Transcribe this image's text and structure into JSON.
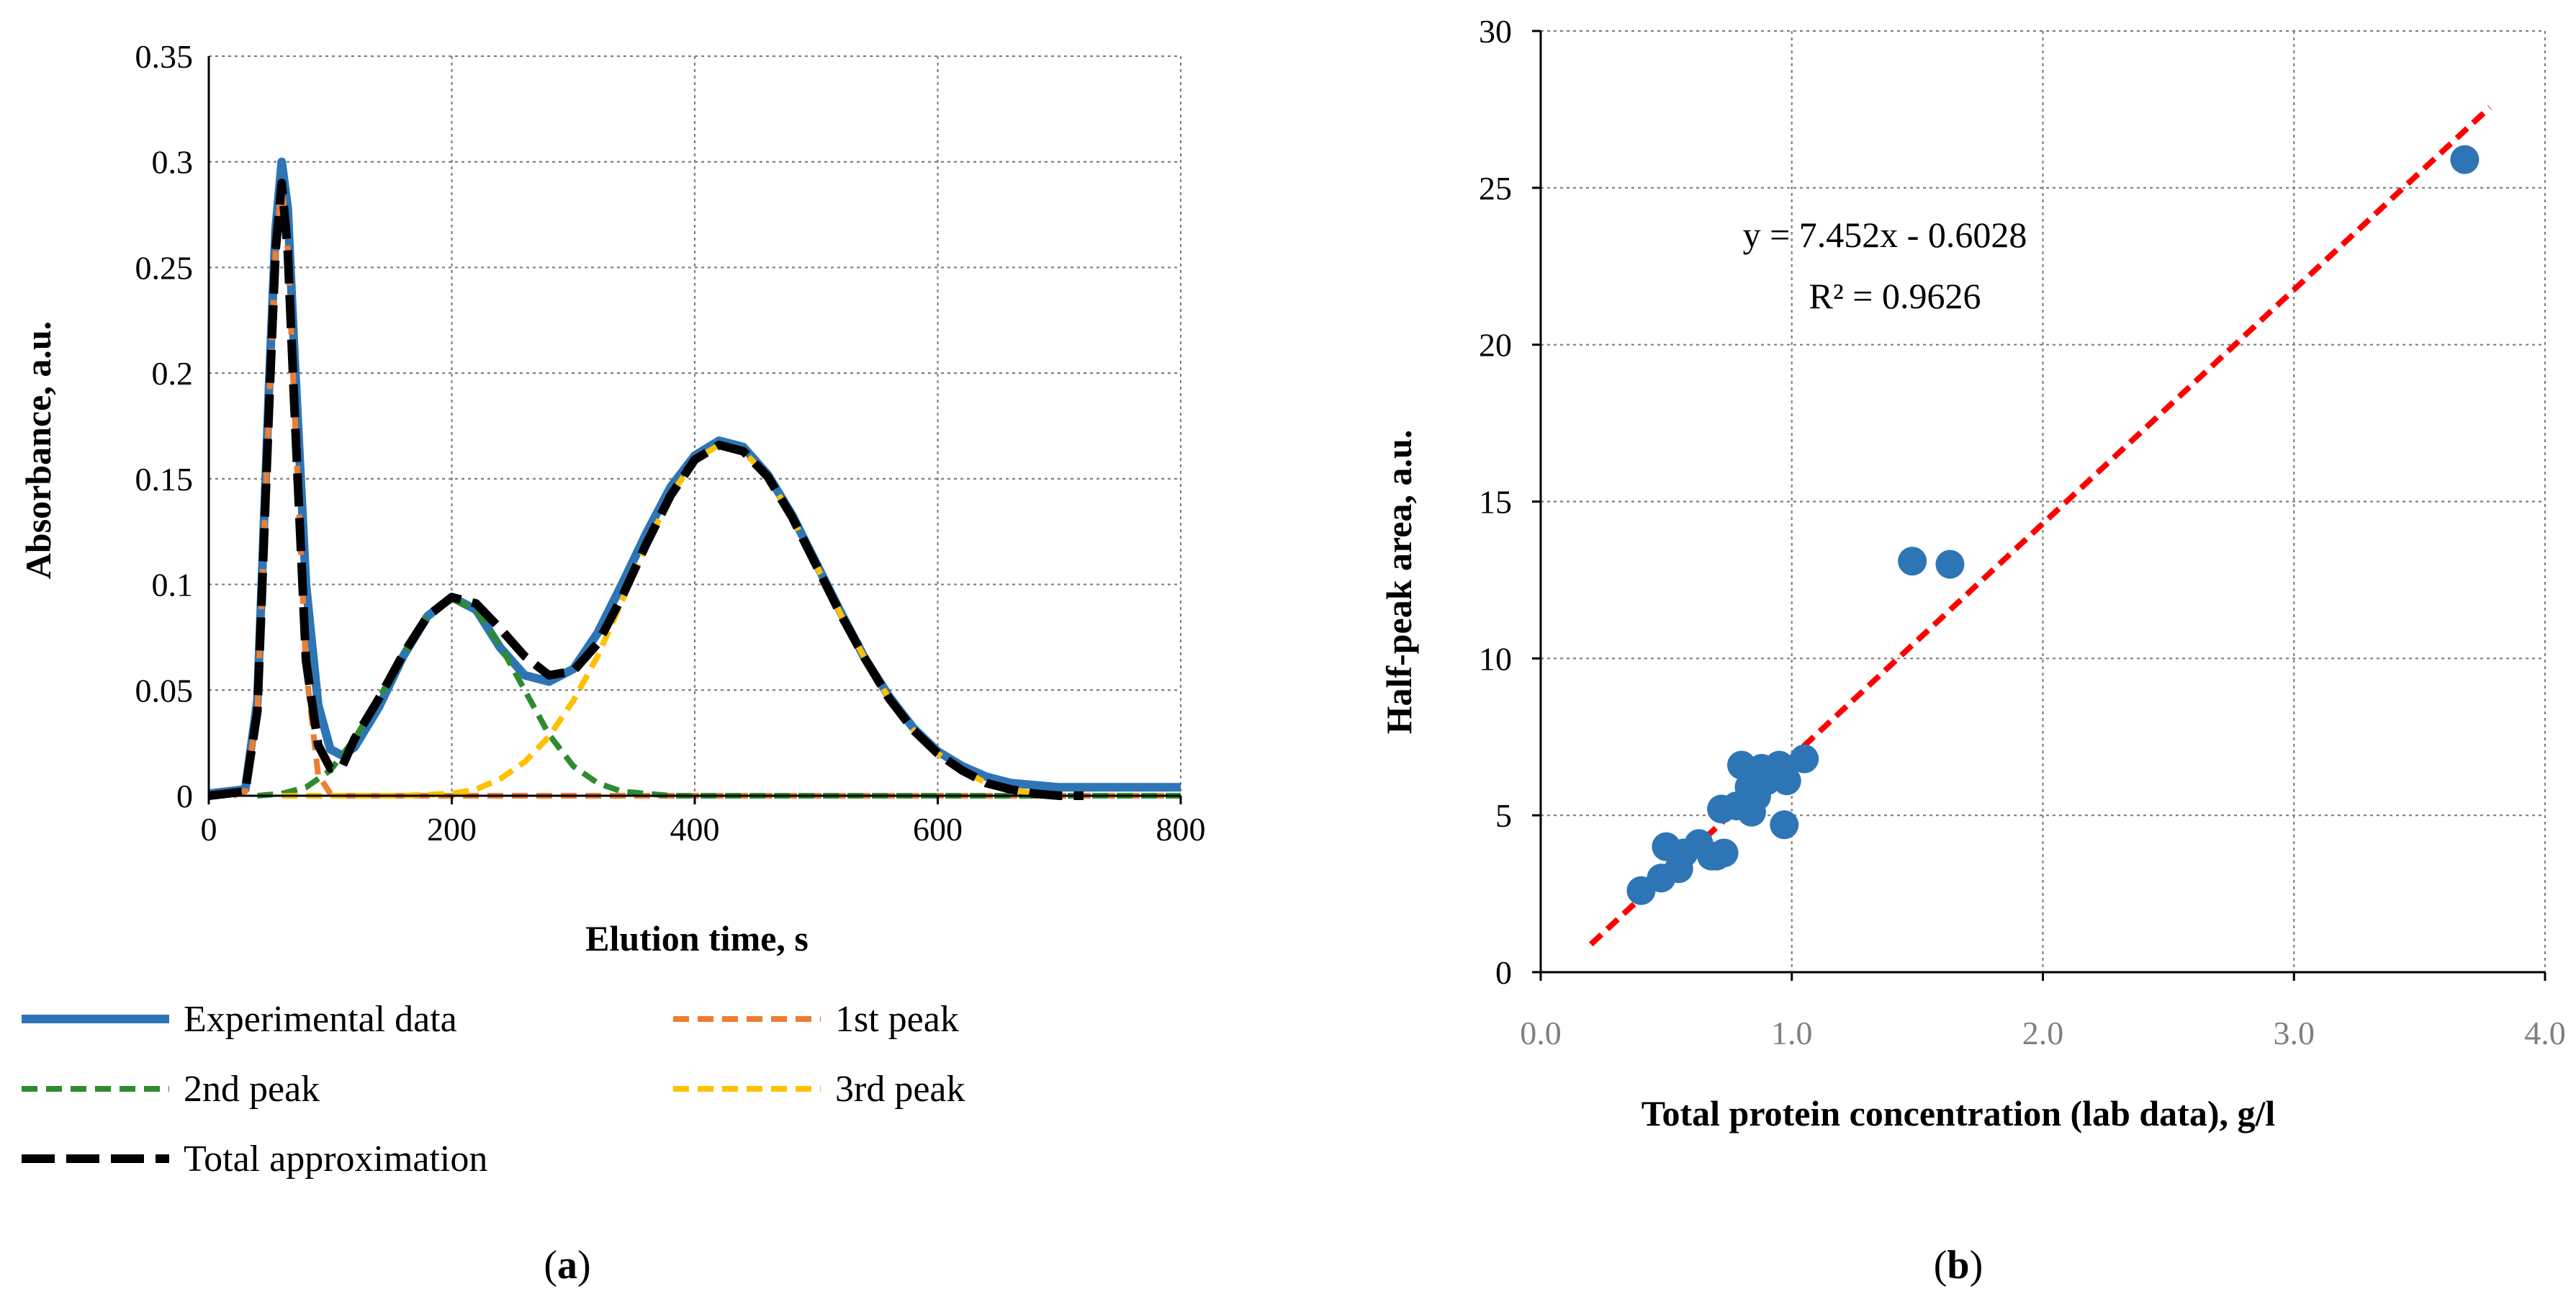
{
  "chart_data": [
    {
      "type": "line",
      "panel": "a",
      "caption": "a",
      "xlabel": "Elution time, s",
      "ylabel": "Absorbance, a.u.",
      "xlim": [
        0,
        800
      ],
      "ylim": [
        0,
        0.35
      ],
      "x_ticks": [
        "0",
        "200",
        "400",
        "600",
        "800"
      ],
      "y_ticks": [
        "0",
        "0.05",
        "0.1",
        "0.15",
        "0.2",
        "0.25",
        "0.3",
        "0.35"
      ],
      "grid": true,
      "legend_position": "bottom",
      "series": [
        {
          "name": "Experimental data",
          "color": "#2e75b6",
          "style": "solid",
          "x": [
            0,
            30,
            40,
            50,
            55,
            60,
            65,
            70,
            80,
            90,
            100,
            110,
            120,
            140,
            160,
            180,
            200,
            220,
            240,
            260,
            280,
            300,
            320,
            340,
            360,
            380,
            400,
            420,
            440,
            460,
            480,
            500,
            520,
            540,
            560,
            580,
            600,
            620,
            640,
            660,
            680,
            700,
            720,
            740,
            760,
            780,
            800
          ],
          "y": [
            0.001,
            0.003,
            0.045,
            0.2,
            0.268,
            0.3,
            0.278,
            0.215,
            0.1,
            0.043,
            0.022,
            0.019,
            0.023,
            0.042,
            0.066,
            0.085,
            0.094,
            0.088,
            0.07,
            0.057,
            0.054,
            0.06,
            0.077,
            0.1,
            0.124,
            0.146,
            0.161,
            0.168,
            0.165,
            0.152,
            0.133,
            0.11,
            0.087,
            0.065,
            0.047,
            0.032,
            0.021,
            0.014,
            0.009,
            0.006,
            0.005,
            0.004,
            0.004,
            0.004,
            0.004,
            0.004,
            0.004
          ]
        },
        {
          "name": "1st peak",
          "color": "#ed7d31",
          "style": "dashed",
          "x": [
            0,
            20,
            30,
            40,
            50,
            55,
            60,
            65,
            70,
            80,
            90,
            100,
            110,
            120,
            140,
            200,
            300,
            400,
            500,
            600,
            700,
            800
          ],
          "y": [
            0,
            0,
            0.002,
            0.04,
            0.19,
            0.258,
            0.29,
            0.258,
            0.19,
            0.06,
            0.01,
            0.001,
            0,
            0,
            0,
            0,
            0,
            0,
            0,
            0,
            0,
            0
          ]
        },
        {
          "name": "2nd peak",
          "color": "#2f8b2f",
          "style": "dashed",
          "x": [
            40,
            60,
            80,
            100,
            120,
            140,
            160,
            180,
            200,
            220,
            240,
            260,
            280,
            300,
            320,
            340,
            360,
            380,
            400,
            500,
            600,
            700,
            800
          ],
          "y": [
            0.0,
            0.001,
            0.004,
            0.012,
            0.027,
            0.046,
            0.067,
            0.085,
            0.093,
            0.088,
            0.071,
            0.05,
            0.029,
            0.014,
            0.006,
            0.002,
            0.001,
            0,
            0,
            0,
            0,
            0,
            0
          ]
        },
        {
          "name": "3rd peak",
          "color": "#ffc000",
          "style": "dashed",
          "x": [
            60,
            120,
            160,
            200,
            220,
            240,
            260,
            280,
            300,
            320,
            340,
            360,
            380,
            400,
            420,
            440,
            460,
            480,
            500,
            520,
            540,
            560,
            580,
            600,
            620,
            640,
            660,
            680,
            700
          ],
          "y": [
            0,
            0,
            0.0,
            0.001,
            0.003,
            0.008,
            0.016,
            0.028,
            0.045,
            0.066,
            0.092,
            0.118,
            0.142,
            0.159,
            0.166,
            0.163,
            0.151,
            0.132,
            0.109,
            0.086,
            0.065,
            0.046,
            0.031,
            0.02,
            0.012,
            0.006,
            0.003,
            0.001,
            0.0
          ]
        },
        {
          "name": "Total approximation",
          "color": "#000000",
          "style": "longdash",
          "x": [
            0,
            30,
            40,
            50,
            55,
            60,
            65,
            70,
            80,
            90,
            100,
            110,
            120,
            140,
            160,
            180,
            200,
            220,
            240,
            260,
            280,
            300,
            320,
            340,
            360,
            380,
            400,
            420,
            440,
            460,
            480,
            500,
            520,
            540,
            560,
            580,
            600,
            620,
            640,
            660,
            680,
            700,
            720
          ],
          "y": [
            0,
            0.002,
            0.04,
            0.19,
            0.258,
            0.29,
            0.258,
            0.19,
            0.064,
            0.024,
            0.013,
            0.014,
            0.027,
            0.046,
            0.067,
            0.085,
            0.094,
            0.091,
            0.079,
            0.066,
            0.057,
            0.059,
            0.072,
            0.094,
            0.119,
            0.142,
            0.159,
            0.166,
            0.163,
            0.151,
            0.132,
            0.109,
            0.086,
            0.065,
            0.046,
            0.031,
            0.02,
            0.012,
            0.006,
            0.003,
            0.001,
            0.0,
            0.0
          ]
        }
      ]
    },
    {
      "type": "scatter",
      "panel": "b",
      "caption": "b",
      "xlabel": "Total protein concentration (lab data), g/l",
      "ylabel": "Half-peak area, a.u.",
      "xlim": [
        0,
        4
      ],
      "ylim": [
        0,
        30
      ],
      "x_ticks": [
        "0.0",
        "1.0",
        "2.0",
        "3.0",
        "4.0"
      ],
      "y_ticks": [
        "0",
        "5",
        "10",
        "15",
        "20",
        "25",
        "30"
      ],
      "grid": true,
      "points": {
        "name": "Samples",
        "color": "#2e75b6",
        "x": [
          0.4,
          0.48,
          0.5,
          0.55,
          0.57,
          0.63,
          0.68,
          0.7,
          0.72,
          0.73,
          0.78,
          0.8,
          0.83,
          0.84,
          0.86,
          0.88,
          0.9,
          0.95,
          0.97,
          0.98,
          1.05,
          1.48,
          1.63,
          3.68
        ],
        "y": [
          2.6,
          3.0,
          4.0,
          3.3,
          3.8,
          4.1,
          3.7,
          3.7,
          5.2,
          3.8,
          5.3,
          6.6,
          5.9,
          5.1,
          5.6,
          6.5,
          6.1,
          6.6,
          4.7,
          6.1,
          6.8,
          13.1,
          13.0,
          25.9
        ]
      },
      "trendline": {
        "color": "#ff0000",
        "style": "dashed",
        "slope": 7.452,
        "intercept": -0.6028,
        "x_range": [
          0.2,
          3.78
        ],
        "equation": "y = 7.452x - 0.6028",
        "r2": "R² = 0.9626"
      }
    }
  ]
}
